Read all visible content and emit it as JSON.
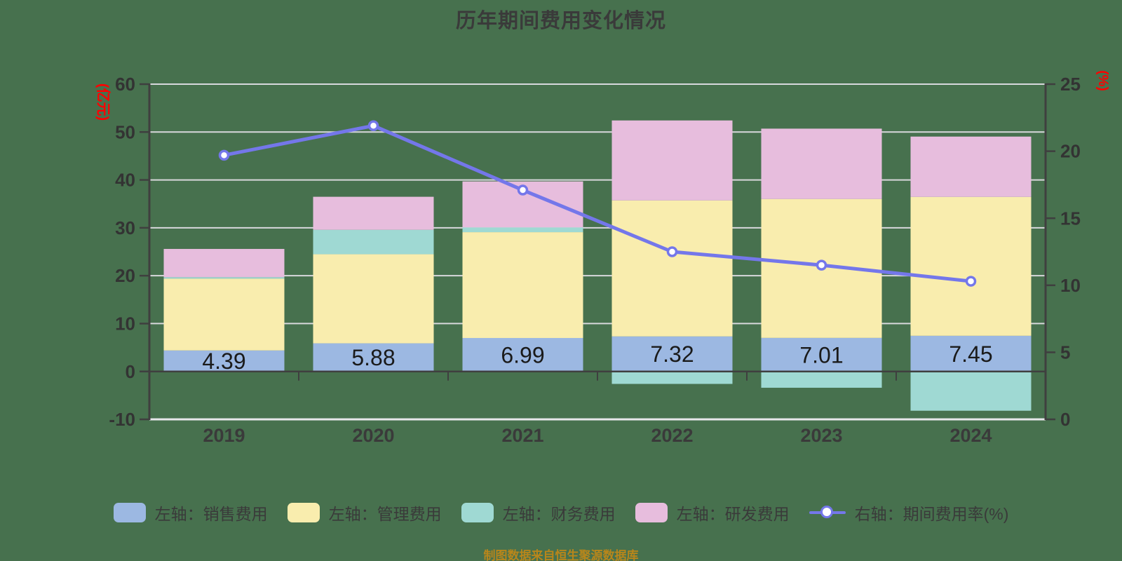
{
  "title": "历年期间费用变化情况",
  "footer": "制图数据来自恒生聚源数据库",
  "colors": {
    "background": "#47714E",
    "title": "#3A3A3A",
    "axis_line": "#3F3F3F",
    "grid_line": "#D8D8DC",
    "grid_line_bottom": "#E7E7EA",
    "tick_text": "#333333",
    "axis_name": "#FF0000",
    "bar_label_text": "#1A1A1A",
    "footer": "#B8861B",
    "marker_fill": "#FFFFFF"
  },
  "chart_data": {
    "type": "bar",
    "subtype": "stacked-bar-with-line",
    "categories": [
      "2019",
      "2020",
      "2021",
      "2022",
      "2023",
      "2024"
    ],
    "series": [
      {
        "name": "左轴：销售费用",
        "type": "bar",
        "axis": "left",
        "color": "#9CB8E2",
        "values": [
          4.39,
          5.88,
          6.99,
          7.32,
          7.01,
          7.45
        ],
        "labels_shown": true
      },
      {
        "name": "左轴：管理费用",
        "type": "bar",
        "axis": "left",
        "color": "#F9EDAE",
        "values": [
          15.0,
          18.6,
          22.1,
          28.4,
          29.0,
          29.0
        ],
        "labels_shown": false
      },
      {
        "name": "左轴：财务费用",
        "type": "bar",
        "axis": "left",
        "color": "#9FD9D3",
        "values": [
          0.3,
          5.1,
          1.0,
          -2.6,
          -3.4,
          -8.2
        ],
        "labels_shown": false
      },
      {
        "name": "左轴：研发费用",
        "type": "bar",
        "axis": "left",
        "color": "#E7BDDD",
        "values": [
          5.9,
          6.9,
          9.6,
          16.7,
          14.7,
          12.6
        ],
        "labels_shown": false
      },
      {
        "name": "右轴：期间费用率(%)",
        "type": "line",
        "axis": "right",
        "color": "#7477EA",
        "values": [
          19.7,
          21.9,
          17.1,
          12.5,
          11.5,
          10.3
        ],
        "labels_shown": false
      }
    ],
    "bar_value_labels": [
      "4.39",
      "5.88",
      "6.99",
      "7.32",
      "7.01",
      "7.45"
    ],
    "left_axis": {
      "name": "(亿元)",
      "min": -10,
      "max": 60,
      "ticks": [
        60,
        50,
        40,
        30,
        20,
        10,
        0,
        -10
      ]
    },
    "right_axis": {
      "name": "(%)",
      "min": 0,
      "max": 25,
      "ticks": [
        25,
        20,
        15,
        10,
        5,
        0
      ]
    },
    "grid": true,
    "legend_position": "bottom",
    "title": "历年期间费用变化情况",
    "xlabel": "",
    "ylabel_left": "(亿元)",
    "ylabel_right": "(%)"
  }
}
